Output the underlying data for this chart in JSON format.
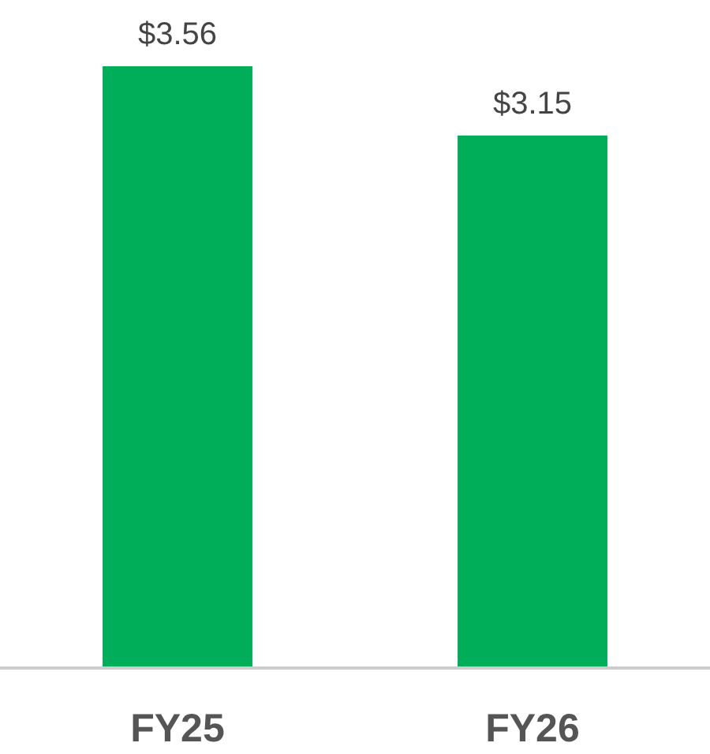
{
  "chart_data": {
    "type": "bar",
    "categories": [
      "FY25",
      "FY26"
    ],
    "values": [
      3.56,
      3.15
    ],
    "color": "#00ae5a",
    "value_labels": [
      "$3.56",
      "$3.15"
    ]
  }
}
